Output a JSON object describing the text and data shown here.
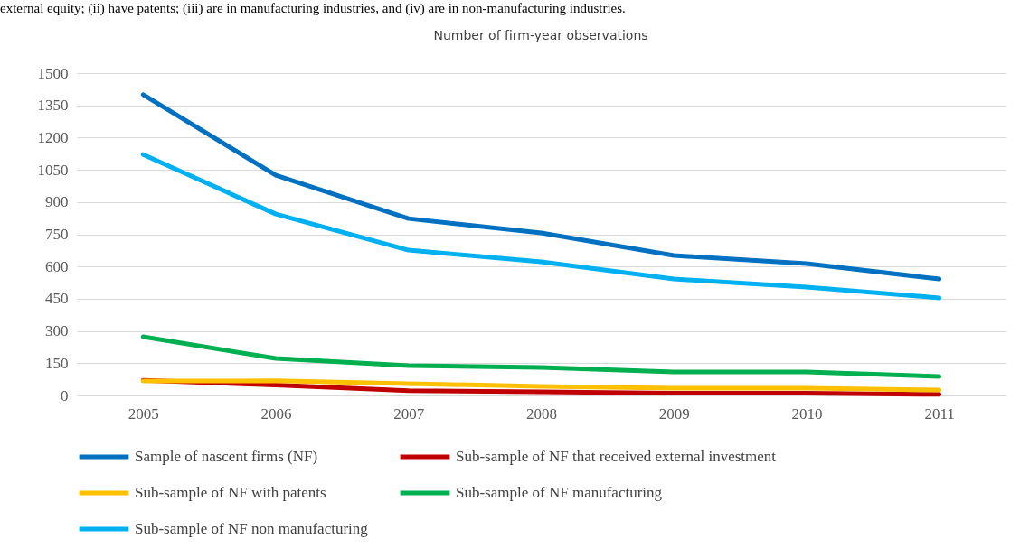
{
  "chart_data": {
    "type": "line",
    "title": "Number of firm-year observations",
    "annotations": [
      "external equity; (ii) have patents; (iii) are in manufacturing industries, and (iv) are in non-manufacturing industries."
    ],
    "categories": [
      "2005",
      "2006",
      "2007",
      "2008",
      "2009",
      "2010",
      "2011"
    ],
    "series": [
      {
        "name": "Sample of nascent firms (NF)",
        "color": "#0070c0",
        "values": [
          1400,
          1025,
          823,
          756,
          651,
          613,
          542
        ]
      },
      {
        "name": "Sub-sample of NF that received external investment",
        "color": "#c00000",
        "values": [
          70,
          48,
          22,
          17,
          10,
          10,
          5
        ]
      },
      {
        "name": "Sub-sample of NF with patents",
        "color": "#ffc000",
        "values": [
          67,
          68,
          55,
          42,
          34,
          34,
          25
        ]
      },
      {
        "name": "Sub-sample of NF manufacturing",
        "color": "#00b050",
        "values": [
          273,
          172,
          139,
          130,
          109,
          109,
          88
        ]
      },
      {
        "name": "Sub-sample of NF non manufacturing",
        "color": "#00b0f0",
        "values": [
          1121,
          844,
          676,
          622,
          542,
          504,
          454
        ]
      }
    ],
    "ylim": [
      0,
      1500
    ],
    "yticks": [
      0,
      150,
      300,
      450,
      600,
      750,
      900,
      1050,
      1200,
      1350,
      1500
    ],
    "grid": "y",
    "legend": "bottom",
    "marker": "none",
    "line_style": "solid"
  }
}
